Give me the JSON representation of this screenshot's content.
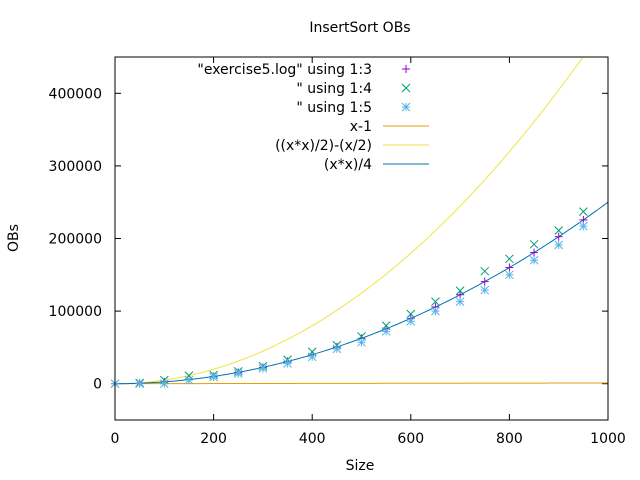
{
  "chart_data": {
    "type": "scatter",
    "title": "InsertSort OBs",
    "xlabel": "Size",
    "ylabel": "OBs",
    "xlim": [
      0,
      1000
    ],
    "ylim": [
      -50000,
      450000
    ],
    "xticks": [
      0,
      200,
      400,
      600,
      800,
      1000
    ],
    "yticks": [
      0,
      100000,
      200000,
      300000,
      400000
    ],
    "legend_position": "top-right",
    "x": [
      0,
      50,
      100,
      150,
      200,
      250,
      300,
      350,
      400,
      450,
      500,
      550,
      600,
      650,
      700,
      750,
      800,
      850,
      900,
      950
    ],
    "series": [
      {
        "name": "\"exercise5.log\" using 1:3",
        "marker": "plus",
        "color": "#9400d3",
        "values": [
          0,
          625,
          2500,
          5625,
          10000,
          15625,
          22500,
          30625,
          40000,
          50625,
          62500,
          75625,
          90000,
          105625,
          122500,
          140625,
          160000,
          180625,
          202500,
          225625
        ]
      },
      {
        "name": "\" using 1:4",
        "marker": "cross",
        "color": "#009e73",
        "values": [
          0,
          1225,
          4950,
          11175,
          12000,
          17000,
          24000,
          33000,
          44000,
          53000,
          65000,
          80000,
          96000,
          113000,
          128000,
          155000,
          172000,
          192000,
          211000,
          237000
        ]
      },
      {
        "name": "\" using 1:5",
        "marker": "asterisk",
        "color": "#56b4e9",
        "values": [
          0,
          49,
          99,
          5000,
          9000,
          14000,
          21000,
          28000,
          37000,
          48000,
          57000,
          72000,
          86000,
          100000,
          113000,
          129000,
          150000,
          170000,
          191000,
          217000
        ]
      }
    ],
    "functions": [
      {
        "name": "x-1",
        "expr": "x-1",
        "color": "#e69f00"
      },
      {
        "name": "((x*x)/2)-(x/2)",
        "expr": "x*x/2 - x/2",
        "color": "#f0e442"
      },
      {
        "name": "(x*x)/4",
        "expr": "x*x/4",
        "color": "#0072b2"
      }
    ]
  }
}
